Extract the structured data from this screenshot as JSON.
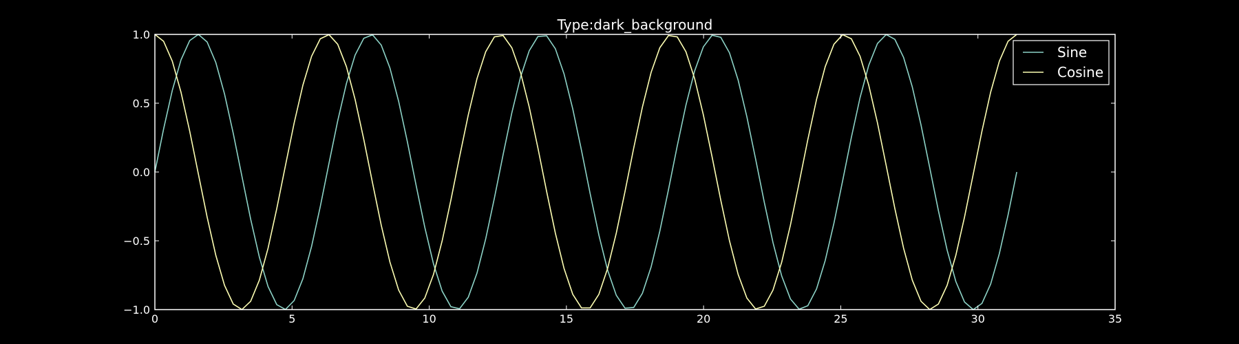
{
  "chart_data": {
    "type": "line",
    "title": "Type:dark_background",
    "xlabel": "",
    "ylabel": "",
    "xlim": [
      0,
      35
    ],
    "ylim": [
      -1.0,
      1.0
    ],
    "xticks": [
      0,
      5,
      10,
      15,
      20,
      25,
      30,
      35
    ],
    "xtick_labels": [
      "0",
      "5",
      "10",
      "15",
      "20",
      "25",
      "30",
      "35"
    ],
    "yticks": [
      -1.0,
      -0.5,
      0.0,
      0.5,
      1.0
    ],
    "ytick_labels": [
      "−1.0",
      "−0.5",
      "0.0",
      "0.5",
      "1.0"
    ],
    "grid": false,
    "legend_position": "top-right",
    "x_range": [
      0,
      31.4159
    ],
    "points": 100,
    "series": [
      {
        "name": "Sine",
        "function": "sin(x)",
        "color": "#8dd3c7"
      },
      {
        "name": "Cosine",
        "function": "cos(x)",
        "color": "#feffb3"
      }
    ]
  },
  "colors": {
    "background": "#000000",
    "axes": "#ffffff",
    "text": "#ffffff"
  }
}
